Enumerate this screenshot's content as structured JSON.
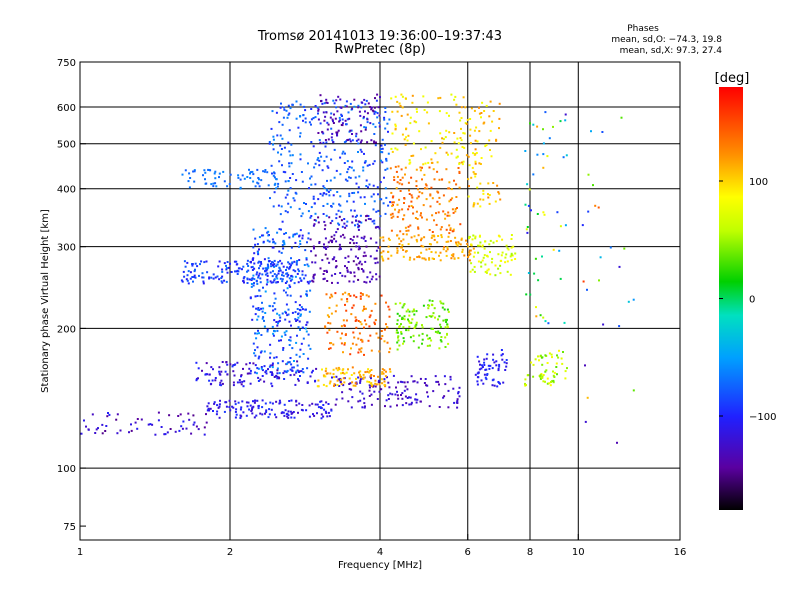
{
  "chart_data": {
    "type": "scatter",
    "title": "Tromsø 20141013 19:36:00–19:37:43",
    "subtitle": "RwPretec (8p)",
    "xlabel": "Frequency [MHz]",
    "ylabel": "Stationary phase Virtual Height [km]",
    "x_scale": "log",
    "y_scale": "log",
    "xlim": [
      1,
      16
    ],
    "ylim": [
      70,
      750
    ],
    "x_ticks": [
      1,
      2,
      4,
      6,
      8,
      10,
      16
    ],
    "x_tick_labels": [
      "1",
      "2",
      "4",
      "6",
      "8",
      "10",
      "16"
    ],
    "y_ticks": [
      75,
      100,
      200,
      300,
      400,
      500,
      600,
      750
    ],
    "y_tick_labels": [
      "75",
      "100",
      "200",
      "300",
      "400",
      "500",
      "600",
      "750"
    ],
    "grid_x": [
      2,
      4,
      6,
      8,
      10
    ],
    "grid_y": [
      100,
      200,
      300,
      400,
      500,
      600
    ],
    "legend_title": "Phases",
    "stats": [
      "mean, sd,O: −74.3, 19.8",
      "mean, sd,X:  97.3, 27.4"
    ],
    "colorbar": {
      "label": "[deg]",
      "range": [
        -180,
        180
      ],
      "ticks": [
        100,
        0,
        -100
      ],
      "tick_labels": [
        "100",
        "0",
        "−100"
      ]
    },
    "clusters": [
      {
        "f": [
          1.0,
          1.8
        ],
        "h": [
          118,
          132
        ],
        "phase": [
          -150,
          -100
        ],
        "n": 60
      },
      {
        "f": [
          1.8,
          3.2
        ],
        "h": [
          128,
          140
        ],
        "phase": [
          -130,
          -90
        ],
        "n": 140
      },
      {
        "f": [
          3.2,
          5.8
        ],
        "h": [
          135,
          158
        ],
        "phase": [
          -140,
          -110
        ],
        "n": 140
      },
      {
        "f": [
          1.7,
          3.0
        ],
        "h": [
          150,
          170
        ],
        "phase": [
          -140,
          -90
        ],
        "n": 120
      },
      {
        "f": [
          3.0,
          4.2
        ],
        "h": [
          150,
          165
        ],
        "phase": [
          90,
          130
        ],
        "n": 90
      },
      {
        "f": [
          2.2,
          2.9
        ],
        "h": [
          160,
          330
        ],
        "phase": [
          -110,
          -50
        ],
        "n": 320
      },
      {
        "f": [
          1.6,
          2.8
        ],
        "h": [
          250,
          280
        ],
        "phase": [
          -110,
          -70
        ],
        "n": 170
      },
      {
        "f": [
          1.6,
          2.5
        ],
        "h": [
          400,
          440
        ],
        "phase": [
          -80,
          -60
        ],
        "n": 70
      },
      {
        "f": [
          2.4,
          4.2
        ],
        "h": [
          330,
          620
        ],
        "phase": [
          -100,
          -60
        ],
        "n": 350
      },
      {
        "f": [
          2.9,
          4.0
        ],
        "h": [
          250,
          350
        ],
        "phase": [
          -150,
          -120
        ],
        "n": 160
      },
      {
        "f": [
          3.0,
          4.0
        ],
        "h": [
          500,
          640
        ],
        "phase": [
          -150,
          -120
        ],
        "n": 90
      },
      {
        "f": [
          4.0,
          6.2
        ],
        "h": [
          280,
          320
        ],
        "phase": [
          100,
          130
        ],
        "n": 120
      },
      {
        "f": [
          4.2,
          5.8
        ],
        "h": [
          320,
          450
        ],
        "phase": [
          110,
          150
        ],
        "n": 150
      },
      {
        "f": [
          4.3,
          5.5
        ],
        "h": [
          180,
          230
        ],
        "phase": [
          20,
          60
        ],
        "n": 120
      },
      {
        "f": [
          3.1,
          4.2
        ],
        "h": [
          175,
          240
        ],
        "phase": [
          110,
          160
        ],
        "n": 120
      },
      {
        "f": [
          4.2,
          6.0
        ],
        "h": [
          450,
          640
        ],
        "phase": [
          70,
          120
        ],
        "n": 110
      },
      {
        "f": [
          6.0,
          7.5
        ],
        "h": [
          260,
          320
        ],
        "phase": [
          50,
          90
        ],
        "n": 80
      },
      {
        "f": [
          6.2,
          7.2
        ],
        "h": [
          150,
          180
        ],
        "phase": [
          -120,
          -90
        ],
        "n": 60
      },
      {
        "f": [
          6.0,
          7.0
        ],
        "h": [
          360,
          620
        ],
        "phase": [
          80,
          130
        ],
        "n": 80
      },
      {
        "f": [
          7.8,
          9.5
        ],
        "h": [
          150,
          180
        ],
        "phase": [
          30,
          90
        ],
        "n": 60
      },
      {
        "f": [
          7.8,
          9.5
        ],
        "h": [
          200,
          600
        ],
        "phase": [
          -130,
          120
        ],
        "n": 50
      },
      {
        "f": [
          10.0,
          13.0
        ],
        "h": [
          110,
          620
        ],
        "phase": [
          -140,
          160
        ],
        "n": 25
      }
    ]
  }
}
